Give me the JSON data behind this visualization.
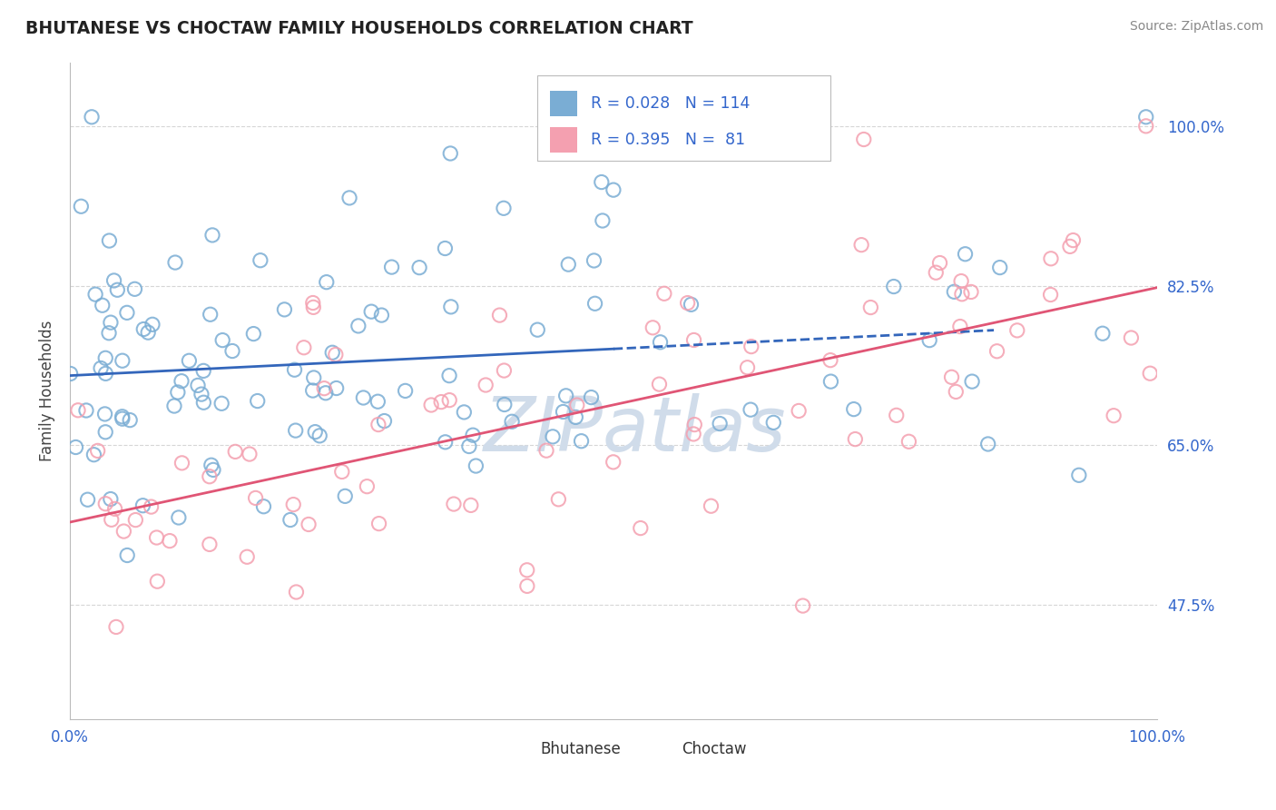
{
  "title": "BHUTANESE VS CHOCTAW FAMILY HOUSEHOLDS CORRELATION CHART",
  "source": "Source: ZipAtlas.com",
  "ylabel": "Family Households",
  "y_ticks": [
    47.5,
    65.0,
    82.5,
    100.0
  ],
  "x_range": [
    0.0,
    100.0
  ],
  "y_range": [
    35.0,
    107.0
  ],
  "bhutanese_R": 0.028,
  "bhutanese_N": 114,
  "choctaw_R": 0.395,
  "choctaw_N": 81,
  "blue_color": "#7aadd4",
  "pink_color": "#f4a0b0",
  "blue_line_color": "#3366bb",
  "pink_line_color": "#e05575",
  "title_color": "#222222",
  "axis_label_color": "#3366cc",
  "background_color": "#FFFFFF",
  "grid_color": "#cccccc",
  "watermark_color": "#d0dcea"
}
